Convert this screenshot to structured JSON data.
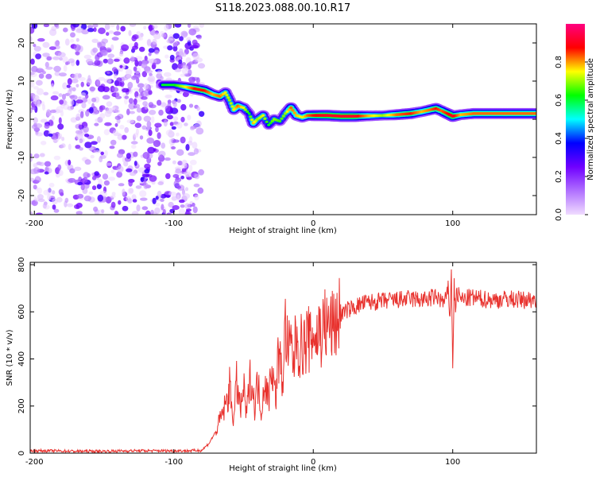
{
  "title": "S118.2023.088.00.10.R17",
  "chart_data": [
    {
      "type": "heatmap",
      "name": "spectrogram",
      "xlabel": "Height of straight line (km)",
      "ylabel": "Frequency (Hz)",
      "xlim": [
        -203,
        160
      ],
      "ylim": [
        -25,
        25
      ],
      "xticks": [
        -200,
        -100,
        0,
        100
      ],
      "yticks": [
        -20,
        -10,
        0,
        10,
        20
      ],
      "colorbar": {
        "label": "Normalized spectral amplitude",
        "range": [
          0,
          1
        ],
        "ticks": [
          0.0,
          0.2,
          0.4,
          0.6,
          0.8
        ],
        "stops": [
          "#f0dcff",
          "#b070ff",
          "#7000ff",
          "#0000ff",
          "#00ffff",
          "#00ff00",
          "#ffff00",
          "#ff0000",
          "#ff0080"
        ]
      },
      "noise_region_x": [
        -203,
        -80
      ],
      "ridge": [
        [
          -108,
          9.0,
          0.6
        ],
        [
          -100,
          9.0,
          0.6
        ],
        [
          -92,
          8.5,
          0.75
        ],
        [
          -85,
          8.0,
          0.9
        ],
        [
          -78,
          7.5,
          0.9
        ],
        [
          -72,
          6.5,
          0.8
        ],
        [
          -67,
          6.0,
          0.85
        ],
        [
          -63,
          7.0,
          0.75
        ],
        [
          -60,
          5.0,
          0.7
        ],
        [
          -57,
          2.5,
          0.75
        ],
        [
          -54,
          3.5,
          0.85
        ],
        [
          -50,
          3.0,
          0.75
        ],
        [
          -46,
          1.5,
          0.6
        ],
        [
          -43,
          -1.0,
          0.8
        ],
        [
          -40,
          0.0,
          0.7
        ],
        [
          -36,
          1.0,
          0.75
        ],
        [
          -32,
          -1.5,
          0.6
        ],
        [
          -28,
          0.0,
          0.7
        ],
        [
          -24,
          -0.5,
          0.65
        ],
        [
          -20,
          1.5,
          0.7
        ],
        [
          -16,
          3.0,
          0.85
        ],
        [
          -12,
          1.0,
          0.8
        ],
        [
          -8,
          0.5,
          0.75
        ],
        [
          -4,
          1.0,
          0.85
        ],
        [
          0,
          1.0,
          0.9
        ],
        [
          10,
          1.0,
          0.95
        ],
        [
          20,
          0.8,
          0.95
        ],
        [
          30,
          0.8,
          0.95
        ],
        [
          40,
          0.9,
          0.8
        ],
        [
          50,
          1.0,
          0.7
        ],
        [
          60,
          1.2,
          0.85
        ],
        [
          70,
          1.5,
          0.9
        ],
        [
          78,
          2.0,
          0.8
        ],
        [
          84,
          2.5,
          0.85
        ],
        [
          88,
          2.8,
          0.9
        ],
        [
          92,
          2.2,
          0.85
        ],
        [
          96,
          1.5,
          0.9
        ],
        [
          100,
          0.8,
          0.95
        ],
        [
          106,
          1.2,
          0.8
        ],
        [
          115,
          1.5,
          0.85
        ],
        [
          125,
          1.5,
          0.85
        ],
        [
          135,
          1.5,
          0.85
        ],
        [
          145,
          1.5,
          0.85
        ],
        [
          155,
          1.5,
          0.85
        ],
        [
          160,
          1.5,
          0.85
        ]
      ]
    },
    {
      "type": "line",
      "name": "snr",
      "xlabel": "Height of straight line (km)",
      "ylabel": "SNR (10 * v/v)",
      "xlim": [
        -203,
        160
      ],
      "ylim": [
        0,
        810
      ],
      "xticks": [
        -200,
        -100,
        0,
        100
      ],
      "yticks": [
        0,
        200,
        400,
        600,
        800
      ],
      "color": "#e8322e",
      "series": [
        {
          "name": "SNR",
          "x": [
            -203,
            -190,
            -170,
            -150,
            -130,
            -110,
            -90,
            -80,
            -75,
            -70,
            -65,
            -62,
            -60,
            -57,
            -55,
            -52,
            -50,
            -48,
            -45,
            -42,
            -40,
            -37,
            -35,
            -32,
            -30,
            -27,
            -25,
            -22,
            -20,
            -18,
            -16,
            -14,
            -12,
            -10,
            -8,
            -6,
            -4,
            -2,
            0,
            2,
            4,
            6,
            8,
            10,
            12,
            14,
            16,
            18,
            20,
            25,
            30,
            35,
            40,
            50,
            60,
            70,
            80,
            85,
            90,
            93,
            95,
            97,
            98,
            99,
            100,
            101,
            102,
            103,
            105,
            108,
            112,
            120,
            130,
            140,
            150,
            160
          ],
          "y": [
            10,
            10,
            8,
            8,
            10,
            10,
            10,
            12,
            40,
            90,
            170,
            220,
            280,
            140,
            300,
            180,
            280,
            160,
            330,
            200,
            300,
            180,
            320,
            220,
            390,
            230,
            430,
            300,
            540,
            420,
            460,
            380,
            520,
            430,
            470,
            450,
            500,
            460,
            530,
            470,
            540,
            500,
            560,
            520,
            560,
            530,
            560,
            580,
            590,
            610,
            620,
            635,
            640,
            645,
            650,
            655,
            650,
            660,
            660,
            640,
            650,
            700,
            560,
            800,
            350,
            710,
            620,
            680,
            660,
            650,
            660,
            655,
            650,
            655,
            650,
            655
          ]
        }
      ]
    }
  ]
}
